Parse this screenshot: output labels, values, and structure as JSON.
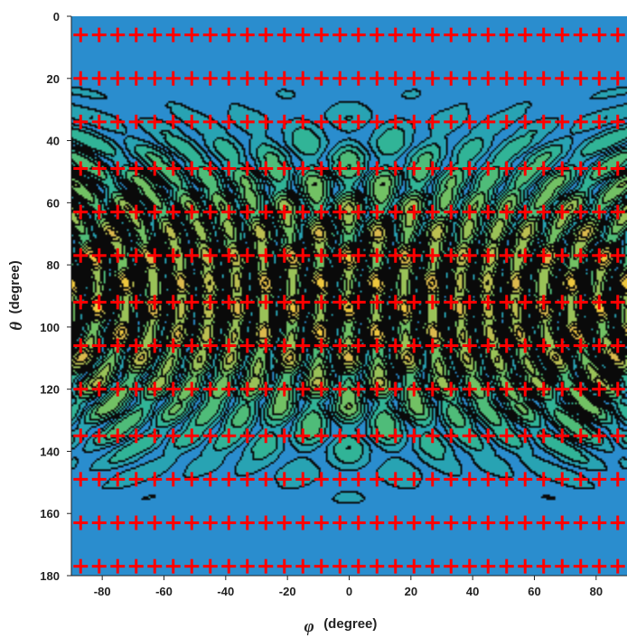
{
  "chart_data": {
    "type": "heatmap",
    "title": "",
    "xlabel": {
      "symbol": "φ",
      "unit": "(degree)"
    },
    "ylabel": {
      "symbol": "θ",
      "unit": "(degree)"
    },
    "xlim": [
      -90,
      90
    ],
    "ylim": [
      0,
      180
    ],
    "y_inverted": true,
    "xticks": [
      -80,
      -60,
      -40,
      -20,
      0,
      20,
      40,
      60,
      80
    ],
    "yticks": [
      0,
      20,
      40,
      60,
      80,
      100,
      120,
      140,
      160,
      180
    ],
    "grid": false,
    "legend": "none",
    "colormap": [
      "#1f3fd0",
      "#2a8ad2",
      "#27b2a0",
      "#5fc06a",
      "#a8c354",
      "#e0b84c",
      "#ffd92e"
    ],
    "contour_color": "#000000",
    "marker_color": "#ff0000",
    "marker_symbol": "+",
    "markers": {
      "theta_rows": [
        6,
        20,
        34,
        49,
        63,
        77,
        92,
        106,
        120,
        135,
        149,
        163,
        177
      ],
      "phi_step": 6,
      "phi_range": [
        -87,
        93
      ]
    }
  }
}
